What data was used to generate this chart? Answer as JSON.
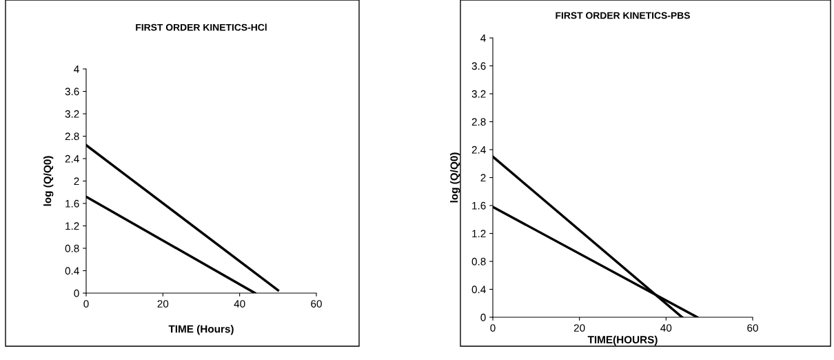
{
  "chart_data": [
    {
      "type": "line",
      "title": "FIRST ORDER KINETICS-HCl",
      "xlabel": "TIME (Hours)",
      "ylabel": "log (Q/Q0)",
      "series": [
        {
          "color": "#000000",
          "x": [
            0,
            50
          ],
          "values": [
            2.64,
            0.05
          ]
        },
        {
          "color": "#000000",
          "x": [
            0,
            44
          ],
          "values": [
            1.72,
            0
          ]
        }
      ],
      "xlim": [
        0,
        60
      ],
      "xticks": [
        0,
        20,
        40,
        60
      ],
      "ylim": [
        0,
        4
      ],
      "yticks": [
        0,
        0.4,
        0.8,
        1.2,
        1.6,
        2,
        2.4,
        2.8,
        3.2,
        3.6,
        4
      ],
      "grid": false,
      "legend": false,
      "marker": "none",
      "line_style": "solid"
    },
    {
      "type": "line",
      "title": "FIRST ORDER KINETICS-PBS",
      "xlabel": "TIME(HOURS)",
      "ylabel": "log (Q/Q0)",
      "series": [
        {
          "color": "#000000",
          "x": [
            0,
            43.7
          ],
          "values": [
            2.3,
            0
          ]
        },
        {
          "color": "#000000",
          "x": [
            0,
            47.2
          ],
          "values": [
            1.58,
            0
          ]
        }
      ],
      "xlim": [
        0,
        60
      ],
      "xticks": [
        0,
        20,
        40,
        60
      ],
      "ylim": [
        0,
        4
      ],
      "yticks": [
        0,
        0.4,
        0.8,
        1.2,
        1.6,
        2,
        2.4,
        2.8,
        3.2,
        3.6,
        4
      ],
      "grid": false,
      "legend": false,
      "marker": "none",
      "line_style": "solid"
    }
  ]
}
